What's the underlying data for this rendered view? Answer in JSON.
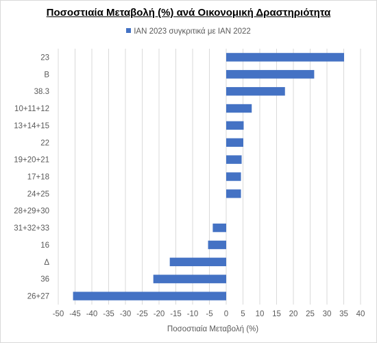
{
  "chart_data": {
    "type": "bar",
    "orientation": "horizontal",
    "title": "Ποσοστιαία Μεταβολή (%) ανά Οικονομική Δραστηριότητα",
    "xlabel": "Ποσοστιαία Μεταβολή (%)",
    "ylabel": "",
    "xlim": [
      -50,
      40
    ],
    "x_ticks": [
      "-50",
      "-45",
      "-40",
      "-35",
      "-30",
      "-25",
      "-20",
      "-15",
      "-10",
      "-5",
      "0",
      "5",
      "10",
      "15",
      "20",
      "25",
      "30",
      "35",
      "40"
    ],
    "grid": true,
    "legend_position": "top",
    "categories": [
      "23",
      "Β",
      "38.3",
      "10+11+12",
      "13+14+15",
      "22",
      "19+20+21",
      "17+18",
      "24+25",
      "28+29+30",
      "31+32+33",
      "16",
      "Δ",
      "36",
      "26+27"
    ],
    "series": [
      {
        "name": "ΙΑΝ 2023 συγκριτικά με ΙΑΝ 2022",
        "color": "#4472c4",
        "values": [
          35.1,
          26.2,
          17.5,
          7.6,
          5.2,
          5.1,
          4.6,
          4.4,
          4.4,
          0,
          -4.0,
          -5.4,
          -16.8,
          -21.7,
          -45.6
        ]
      }
    ]
  }
}
